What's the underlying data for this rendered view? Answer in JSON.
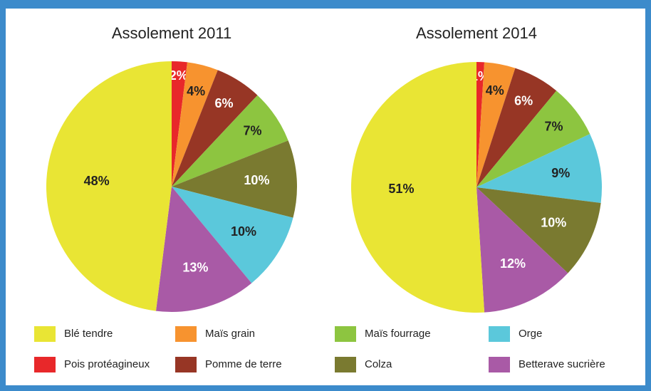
{
  "chart_data": [
    {
      "type": "pie",
      "title": "Assolement 2011",
      "values": [
        2,
        4,
        6,
        7,
        10,
        10,
        13,
        48
      ],
      "value_labels": [
        "2%",
        "4%",
        "6%",
        "7%",
        "10%",
        "10%",
        "13%",
        "48%"
      ],
      "colors": [
        "#e8282a",
        "#f7932f",
        "#973625",
        "#8dc540",
        "#7a7a30",
        "#5bc8db",
        "#a95aa6",
        "#e9e534"
      ]
    },
    {
      "type": "pie",
      "title": "Assolement 2014",
      "values": [
        1,
        4,
        6,
        7,
        9,
        10,
        12,
        51
      ],
      "value_labels": [
        "1%",
        "4%",
        "6%",
        "7%",
        "9%",
        "10%",
        "12%",
        "51%"
      ],
      "colors": [
        "#e8282a",
        "#f7932f",
        "#973625",
        "#8dc540",
        "#5bc8db",
        "#7a7a30",
        "#a95aa6",
        "#e9e534"
      ]
    }
  ],
  "legend": {
    "items": [
      {
        "name": "Blé tendre",
        "color": "#e9e534"
      },
      {
        "name": "Maïs grain",
        "color": "#f7932f"
      },
      {
        "name": "Maïs fourrage",
        "color": "#8dc540"
      },
      {
        "name": "Orge",
        "color": "#5bc8db"
      },
      {
        "name": "Pois protéagineux",
        "color": "#e8282a"
      },
      {
        "name": "Pomme de terre",
        "color": "#973625"
      },
      {
        "name": "Colza",
        "color": "#7a7a30"
      },
      {
        "name": "Betterave sucrière",
        "color": "#a95aa6"
      }
    ]
  }
}
